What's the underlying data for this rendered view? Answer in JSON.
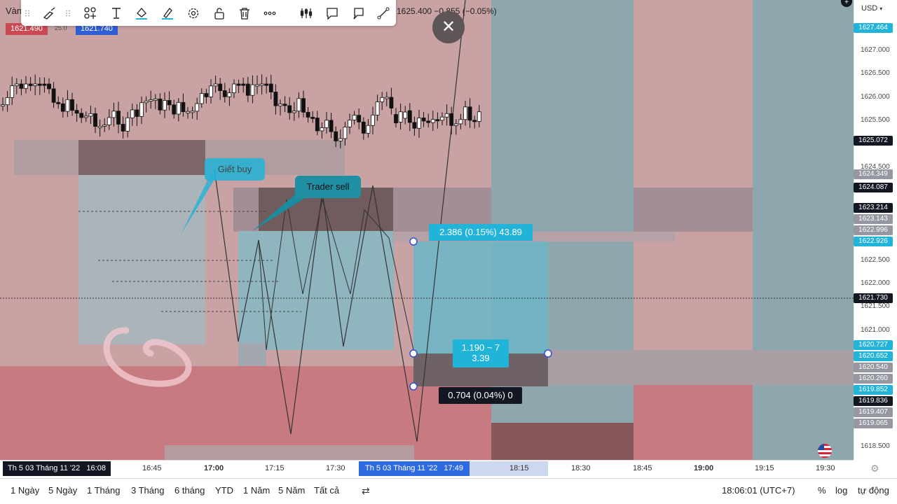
{
  "header": {
    "title_fragment": "Vàn",
    "ohlc_fragment": "1625.400 −0.855 (−0.05%)"
  },
  "top_tags": {
    "sell_price": "1621.490",
    "spread": "25.0",
    "buy_price": "1621.740"
  },
  "currency": "USD",
  "drawings": {
    "callout_1": "Giết buy",
    "callout_2": "Trader sell",
    "measure_top": "2.386 (0.15%) 43.89",
    "measure_mid_line1": "1.190 ~ 7",
    "measure_mid_line2": "3.39",
    "measure_bottom": "0.704 (0.04%) 0"
  },
  "price_axis": {
    "labels": [
      "1627.000",
      "1626.500",
      "1626.000",
      "1625.500",
      "1624.500",
      "1622.500",
      "1622.000",
      "1621.500",
      "1621.000",
      "1618.500"
    ],
    "tags": [
      {
        "text": "1627.464",
        "color": "#22b3d8"
      },
      {
        "text": "1625.072",
        "color": "#131722"
      },
      {
        "text": "1624.349",
        "color": "#9598a1"
      },
      {
        "text": "1624.087",
        "color": "#131722"
      },
      {
        "text": "1623.214",
        "color": "#131722"
      },
      {
        "text": "1623.143",
        "color": "#9598a1"
      },
      {
        "text": "1622.996",
        "color": "#9598a1"
      },
      {
        "text": "1622.926",
        "color": "#22b3d8"
      },
      {
        "text": "1621.730",
        "color": "#131722"
      },
      {
        "text": "1620.727",
        "color": "#22b3d8"
      },
      {
        "text": "1620.652",
        "color": "#22b3d8"
      },
      {
        "text": "1620.540",
        "color": "#9598a1"
      },
      {
        "text": "1620.260",
        "color": "#9598a1"
      },
      {
        "text": "1619.852",
        "color": "#22b3d8"
      },
      {
        "text": "1619.836",
        "color": "#131722"
      },
      {
        "text": "1619.407",
        "color": "#9598a1"
      },
      {
        "text": "1619.065",
        "color": "#9598a1"
      }
    ]
  },
  "time_axis": {
    "left_tag": "Th 5 03 Tháng 11 '22   16:08",
    "cursor_tag": "Th 5 03 Tháng 11 '22   17:49",
    "labels": [
      "16:45",
      "17:00",
      "17:15",
      "17:30",
      "18:15",
      "18:30",
      "18:45",
      "19:00",
      "19:15",
      "19:30"
    ]
  },
  "bottom_bar": {
    "ranges": [
      "1 Ngày",
      "5 Ngày",
      "1 Tháng",
      "3 Tháng",
      "6 tháng",
      "YTD",
      "1 Năm",
      "5 Năm",
      "Tất cả"
    ],
    "clock": "18:06:01 (UTC+7)",
    "percent": "%",
    "log": "log",
    "auto": "tự động"
  },
  "colors": {
    "accent": "#22b3d8",
    "bg": "#c9a2a3",
    "axis_dark": "#131722"
  },
  "toolbar_icons": [
    "drag-handle-icon",
    "brush-icon",
    "drag-handle-icon",
    "templates-icon",
    "text-icon",
    "fill-color-icon",
    "line-color-icon",
    "settings-icon",
    "lock-icon",
    "delete-icon",
    "more-icon"
  ],
  "side_toolbar_icons": [
    "bars-icon",
    "comment-icon",
    "callout-icon",
    "trendline-icon"
  ]
}
